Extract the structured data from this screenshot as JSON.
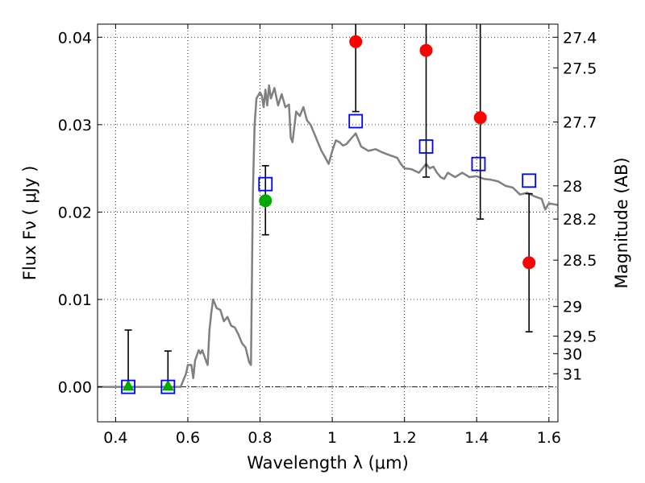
{
  "chart_data": {
    "type": "scatter",
    "xlabel": "Wavelength  λ (μm)",
    "ylabel": "Flux  Fν  ( μJy )",
    "ylabel_right": "Magnitude (AB)",
    "xlim": [
      0.35,
      1.625
    ],
    "ylim": [
      -0.004,
      0.0415
    ],
    "grid": true,
    "x_ticks": [
      0.4,
      0.6,
      0.8,
      1.0,
      1.2,
      1.4,
      1.6
    ],
    "x_tick_labels": [
      "0.4",
      "0.6",
      "0.8",
      "1",
      "1.2",
      "1.4",
      "1.6"
    ],
    "y_ticks": [
      0.0,
      0.01,
      0.02,
      0.03,
      0.04
    ],
    "y_tick_labels": [
      "0.00",
      "0.01",
      "0.02",
      "0.03",
      "0.04"
    ],
    "right_ticks": [
      {
        "label": "27.4",
        "flux": 0.04
      },
      {
        "label": "27.5",
        "flux": 0.0365
      },
      {
        "label": "27.7",
        "flux": 0.0303
      },
      {
        "label": "28",
        "flux": 0.023
      },
      {
        "label": "28.2",
        "flux": 0.0192
      },
      {
        "label": "28.5",
        "flux": 0.0145
      },
      {
        "label": "29",
        "flux": 0.0092
      },
      {
        "label": "29.5",
        "flux": 0.0058
      },
      {
        "label": "30",
        "flux": 0.0038
      },
      {
        "label": "31",
        "flux": 0.0015
      }
    ],
    "colors": {
      "model": "#808080",
      "observed": "#ff0000",
      "upper_limit": "#00aa00",
      "model_photometry": "#0000ff",
      "error_bar": "#000000"
    },
    "series": [
      {
        "kind": "line",
        "x": [
          0.35,
          0.58,
          0.59,
          0.595,
          0.6,
          0.61,
          0.615,
          0.62,
          0.63,
          0.635,
          0.64,
          0.65,
          0.655,
          0.66,
          0.665,
          0.67,
          0.68,
          0.69,
          0.7,
          0.71,
          0.72,
          0.73,
          0.74,
          0.75,
          0.76,
          0.77,
          0.775,
          0.78,
          0.785,
          0.79,
          0.8,
          0.805,
          0.81,
          0.815,
          0.82,
          0.825,
          0.83,
          0.84,
          0.85,
          0.86,
          0.87,
          0.88,
          0.885,
          0.89,
          0.9,
          0.91,
          0.92,
          0.93,
          0.94,
          0.95,
          0.96,
          0.97,
          0.98,
          0.99,
          1.0,
          1.01,
          1.02,
          1.03,
          1.04,
          1.05,
          1.065,
          1.08,
          1.1,
          1.12,
          1.14,
          1.16,
          1.18,
          1.19,
          1.2,
          1.22,
          1.24,
          1.26,
          1.27,
          1.28,
          1.29,
          1.3,
          1.31,
          1.32,
          1.34,
          1.36,
          1.38,
          1.4,
          1.42,
          1.44,
          1.46,
          1.48,
          1.5,
          1.52,
          1.54,
          1.56,
          1.58,
          1.59,
          1.6,
          1.625
        ],
        "y": [
          0.0,
          0.0,
          0.001,
          0.0015,
          0.0025,
          0.0025,
          0.001,
          0.003,
          0.0042,
          0.0038,
          0.0042,
          0.003,
          0.0025,
          0.0065,
          0.0085,
          0.01,
          0.009,
          0.0088,
          0.0075,
          0.008,
          0.007,
          0.0068,
          0.006,
          0.005,
          0.0045,
          0.0028,
          0.0025,
          0.022,
          0.03,
          0.033,
          0.0337,
          0.0333,
          0.032,
          0.034,
          0.0322,
          0.0345,
          0.033,
          0.0342,
          0.0322,
          0.0335,
          0.032,
          0.0323,
          0.0285,
          0.028,
          0.0315,
          0.031,
          0.032,
          0.0305,
          0.03,
          0.029,
          0.028,
          0.027,
          0.0263,
          0.0255,
          0.027,
          0.0282,
          0.028,
          0.0276,
          0.0278,
          0.0283,
          0.029,
          0.0275,
          0.027,
          0.0272,
          0.0268,
          0.0265,
          0.0262,
          0.0255,
          0.025,
          0.0249,
          0.0245,
          0.0255,
          0.025,
          0.0252,
          0.0245,
          0.024,
          0.0238,
          0.0245,
          0.024,
          0.0245,
          0.024,
          0.0241,
          0.0238,
          0.0237,
          0.0235,
          0.023,
          0.0228,
          0.022,
          0.0222,
          0.0218,
          0.0215,
          0.0203,
          0.021,
          0.0208
        ]
      },
      {
        "kind": "observed",
        "x": [
          1.065,
          1.26,
          1.41,
          1.545
        ],
        "y": [
          0.0395,
          0.0385,
          0.0308,
          0.0142
        ],
        "yerr_low": [
          0.0315,
          0.024,
          0.0192,
          0.0063
        ],
        "yerr_high": [
          0.0415,
          0.0415,
          0.0415,
          0.0221
        ]
      },
      {
        "kind": "upper_limit",
        "x": [
          0.435,
          0.545,
          0.815
        ],
        "y": [
          0.0,
          0.0,
          0.0213
        ],
        "yerr_low": [
          0.0,
          0.0,
          0.0174
        ],
        "yerr_high": [
          0.0065,
          0.0041,
          0.0253
        ]
      },
      {
        "kind": "model_photometry",
        "x": [
          0.435,
          0.545,
          0.815,
          1.065,
          1.26,
          1.405,
          1.545
        ],
        "y": [
          0.0,
          0.0,
          0.0232,
          0.0304,
          0.0275,
          0.0255,
          0.0236
        ]
      }
    ]
  }
}
